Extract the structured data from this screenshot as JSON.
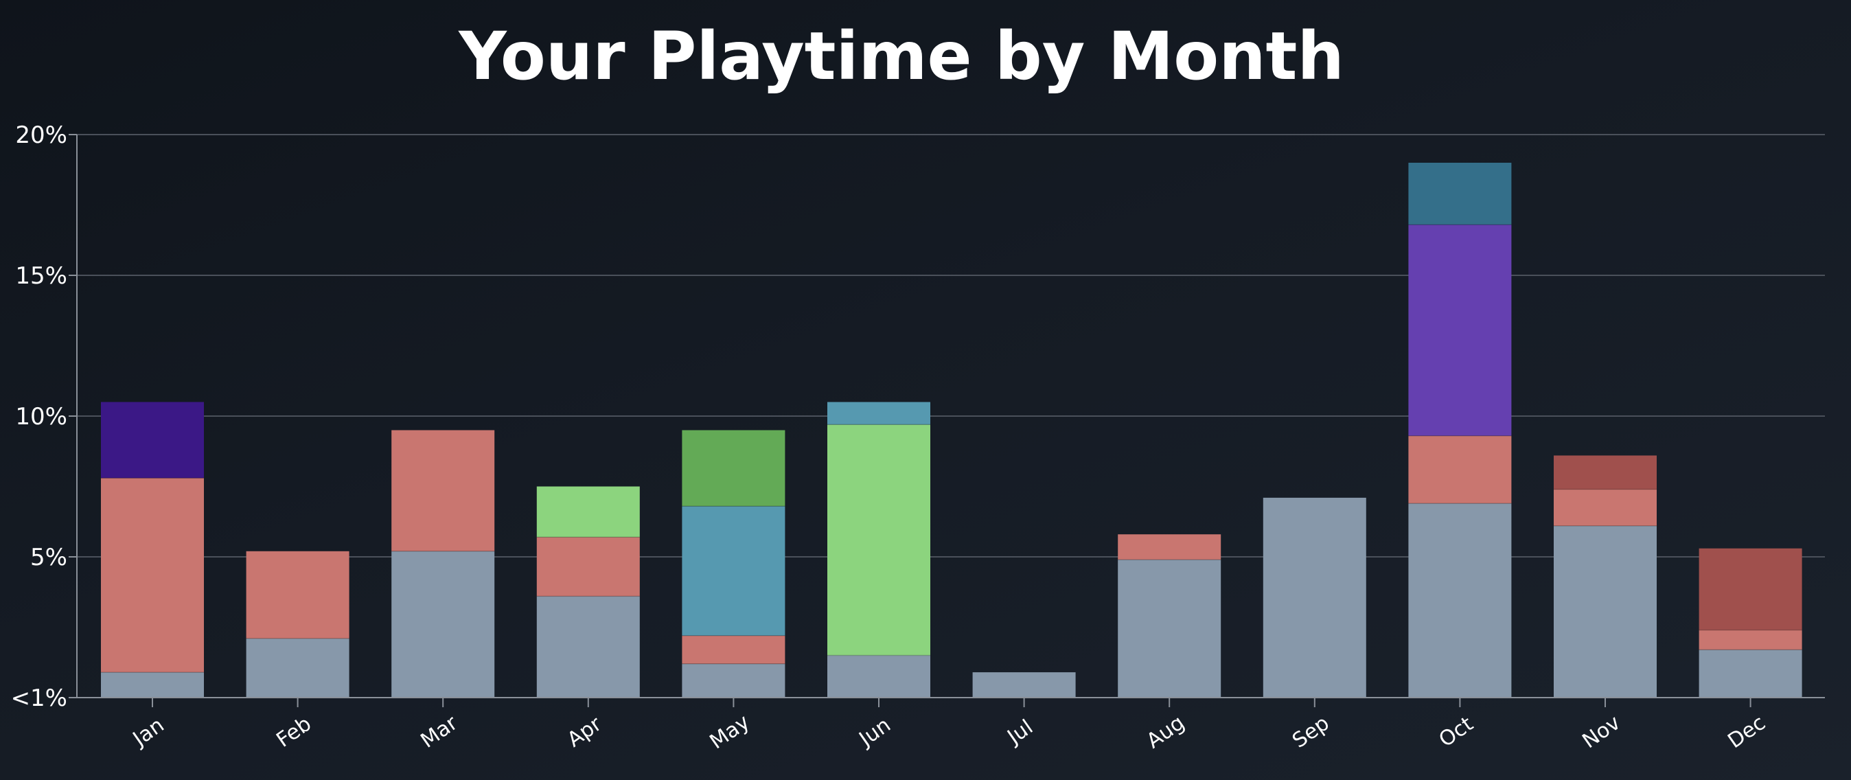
{
  "chart_data": {
    "type": "bar",
    "stacked": true,
    "title": "Your Playtime by Month",
    "xlabel": "",
    "ylabel": "",
    "ylim": [
      0,
      20
    ],
    "yticks": [
      {
        "value": 0,
        "label": "<1%"
      },
      {
        "value": 5,
        "label": "5%"
      },
      {
        "value": 10,
        "label": "10%"
      },
      {
        "value": 15,
        "label": "15%"
      },
      {
        "value": 20,
        "label": "20%"
      }
    ],
    "grid": true,
    "legend": "none",
    "categories": [
      "Jan",
      "Feb",
      "Mar",
      "Apr",
      "May",
      "Jun",
      "Jul",
      "Aug",
      "Sep",
      "Oct",
      "Nov",
      "Dec"
    ],
    "stacks": [
      [
        {
          "value": 0.9,
          "color": "#8798aa"
        },
        {
          "value": 6.9,
          "color": "#c97670"
        },
        {
          "value": 2.7,
          "color": "#3b1886"
        }
      ],
      [
        {
          "value": 2.1,
          "color": "#8798aa"
        },
        {
          "value": 3.1,
          "color": "#c97670"
        }
      ],
      [
        {
          "value": 5.2,
          "color": "#8798aa"
        },
        {
          "value": 4.3,
          "color": "#c97670"
        }
      ],
      [
        {
          "value": 3.6,
          "color": "#8798aa"
        },
        {
          "value": 2.1,
          "color": "#c97670"
        },
        {
          "value": 1.8,
          "color": "#8cd47e"
        }
      ],
      [
        {
          "value": 1.2,
          "color": "#8798aa"
        },
        {
          "value": 1.0,
          "color": "#c97670"
        },
        {
          "value": 4.6,
          "color": "#5699b0"
        },
        {
          "value": 2.7,
          "color": "#63aa56"
        }
      ],
      [
        {
          "value": 1.5,
          "color": "#8798aa"
        },
        {
          "value": 8.2,
          "color": "#8cd47e"
        },
        {
          "value": 0.8,
          "color": "#5699b0"
        }
      ],
      [
        {
          "value": 0.9,
          "color": "#8798aa"
        }
      ],
      [
        {
          "value": 4.9,
          "color": "#8798aa"
        },
        {
          "value": 0.9,
          "color": "#c97670"
        }
      ],
      [
        {
          "value": 7.1,
          "color": "#8798aa"
        }
      ],
      [
        {
          "value": 6.9,
          "color": "#8798aa"
        },
        {
          "value": 2.4,
          "color": "#c97670"
        },
        {
          "value": 7.5,
          "color": "#6540b0"
        },
        {
          "value": 2.2,
          "color": "#346f8a"
        }
      ],
      [
        {
          "value": 6.1,
          "color": "#8798aa"
        },
        {
          "value": 1.3,
          "color": "#c97670"
        },
        {
          "value": 1.2,
          "color": "#a0504d"
        }
      ],
      [
        {
          "value": 1.7,
          "color": "#8798aa"
        },
        {
          "value": 0.7,
          "color": "#c97670"
        },
        {
          "value": 2.9,
          "color": "#a0504d"
        }
      ]
    ],
    "colors": {
      "grid": "#4a505a",
      "axis": "#8a9099",
      "text": "#ffffff"
    }
  }
}
